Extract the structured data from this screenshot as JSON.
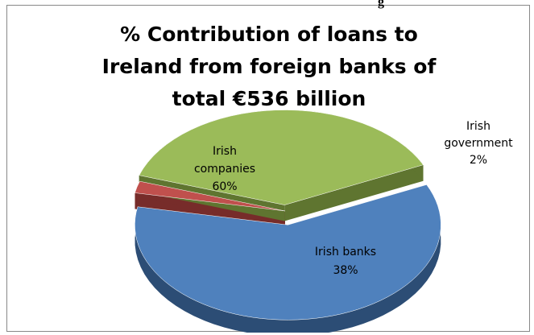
{
  "header_fragment": "g",
  "chart_data": {
    "type": "pie",
    "title_lines": [
      "% Contribution of loans to",
      "Ireland from foreign banks of",
      "total €536 billion"
    ],
    "slices": [
      {
        "name": "Irish companies",
        "value": 60,
        "label_lines": [
          "Irish",
          "companies",
          "60%"
        ],
        "color": "#4F81BD",
        "side_color": "#2C4D75"
      },
      {
        "name": "Irish government",
        "value": 2,
        "label_lines": [
          "Irish",
          "government",
          "2%"
        ],
        "color": "#C0504D",
        "side_color": "#772C2A"
      },
      {
        "name": "Irish banks",
        "value": 38,
        "label_lines": [
          "Irish banks",
          "38%"
        ],
        "color": "#9BBB59",
        "side_color": "#5F7530"
      }
    ]
  }
}
